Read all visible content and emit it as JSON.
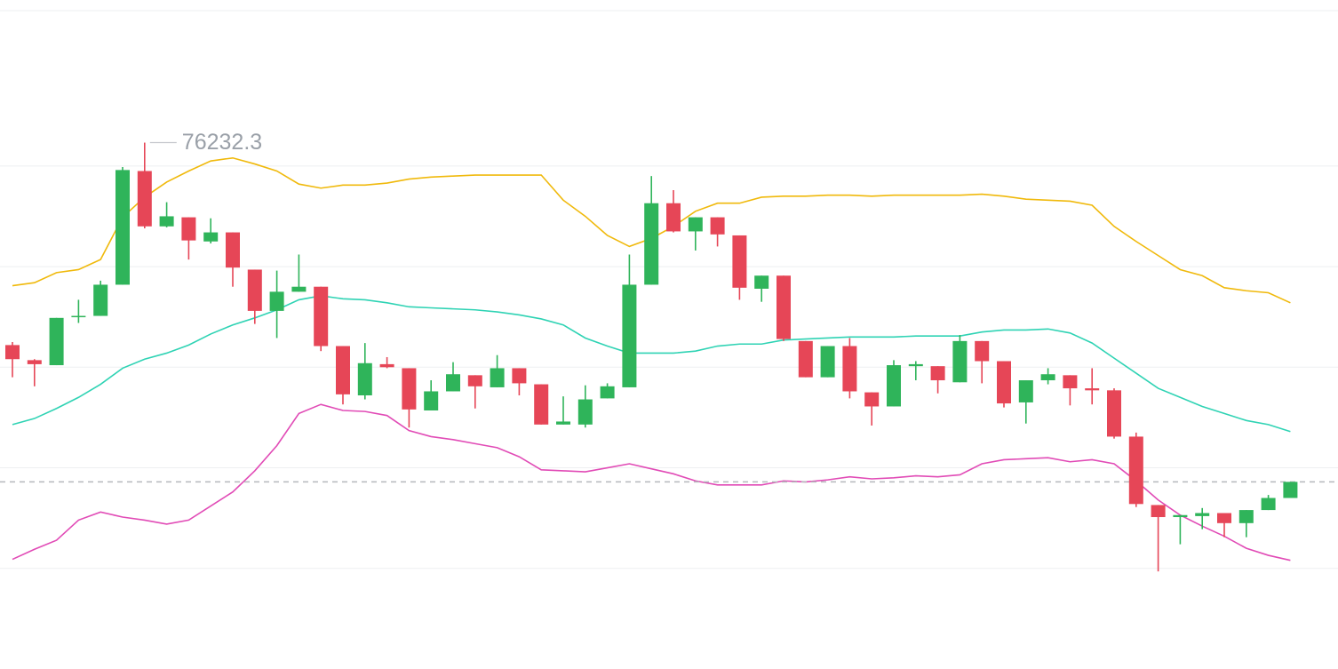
{
  "chart_data": {
    "type": "candlestick",
    "ylim": [
      71000,
      77650
    ],
    "yticks": [
      72000,
      73000,
      74000,
      75000,
      76000
    ],
    "grid": true,
    "up_color": "#2fb45a",
    "down_color": "#e64657",
    "open": [
      74220,
      74070,
      74020,
      74500,
      74510,
      74820,
      75950,
      75400,
      75490,
      75250,
      75340,
      74970,
      74560,
      74750,
      74800,
      74210,
      73720,
      74030,
      73990,
      73570,
      73760,
      73920,
      73800,
      73990,
      73830,
      73430,
      73430,
      73690,
      73800,
      74820,
      75630,
      75350,
      75490,
      75310,
      74780,
      74910,
      74260,
      73900,
      74210,
      73750,
      73610,
      74010,
      74010,
      73850,
      74260,
      74060,
      73650,
      73870,
      73920,
      73790,
      73770,
      73310,
      72630,
      72510,
      72520,
      72550,
      72450,
      72580,
      72700
    ],
    "high": [
      74250,
      74080,
      74490,
      74670,
      74860,
      75990,
      76232.3,
      75640,
      75490,
      75480,
      75340,
      74970,
      74960,
      75120,
      74800,
      74210,
      74240,
      74100,
      73990,
      73870,
      74050,
      73920,
      74120,
      73990,
      73830,
      73710,
      73820,
      73840,
      75120,
      75900,
      75760,
      75490,
      75490,
      75310,
      74910,
      74910,
      74260,
      74210,
      74290,
      73750,
      74070,
      74060,
      74010,
      74320,
      74260,
      74060,
      73870,
      73990,
      73920,
      73990,
      73790,
      73350,
      72630,
      72530,
      72600,
      72550,
      72580,
      72730,
      72860
    ],
    "low": [
      73900,
      73810,
      74020,
      74440,
      74510,
      74820,
      75380,
      75390,
      75070,
      75230,
      74800,
      74430,
      74290,
      74750,
      74160,
      73630,
      73680,
      73990,
      73400,
      73570,
      73760,
      73590,
      73800,
      73720,
      73430,
      73430,
      73400,
      73690,
      73800,
      74820,
      75340,
      75160,
      75200,
      74670,
      74650,
      74260,
      73900,
      73900,
      73690,
      73420,
      73610,
      73870,
      73740,
      73850,
      73840,
      73600,
      73440,
      73830,
      73620,
      73630,
      73290,
      72610,
      71970,
      72240,
      72390,
      72310,
      72310,
      72580,
      72700
    ],
    "close": [
      74080,
      74030,
      74490,
      74510,
      74820,
      75960,
      75400,
      75500,
      75260,
      75340,
      74990,
      74560,
      74750,
      74800,
      74210,
      73730,
      74040,
      74000,
      73580,
      73760,
      73930,
      73810,
      73990,
      73840,
      73430,
      73460,
      73680,
      73810,
      74820,
      75630,
      75350,
      75490,
      75320,
      74790,
      74910,
      74280,
      73900,
      74210,
      73760,
      73610,
      74020,
      74030,
      73870,
      74260,
      74060,
      73640,
      73870,
      73930,
      73790,
      73770,
      73310,
      72640,
      72510,
      72530,
      72550,
      72450,
      72580,
      72700,
      72860
    ],
    "series": [
      {
        "color": "#f0b90b",
        "values": [
          74810,
          74840,
          74940,
          74970,
          75070,
          75490,
          75690,
          75840,
          75950,
          76050,
          76080,
          76020,
          75950,
          75820,
          75780,
          75810,
          75810,
          75830,
          75870,
          75890,
          75900,
          75910,
          75910,
          75910,
          75910,
          75660,
          75500,
          75310,
          75200,
          75280,
          75400,
          75550,
          75630,
          75630,
          75690,
          75700,
          75700,
          75710,
          75710,
          75700,
          75710,
          75710,
          75710,
          75710,
          75720,
          75700,
          75670,
          75660,
          75650,
          75610,
          75400,
          75250,
          75110,
          74970,
          74910,
          74790,
          74760,
          74740,
          74640
        ]
      },
      {
        "color": "#2fd3b4",
        "values": [
          73430,
          73490,
          73590,
          73700,
          73830,
          73990,
          74080,
          74140,
          74220,
          74330,
          74420,
          74490,
          74570,
          74670,
          74710,
          74680,
          74670,
          74640,
          74600,
          74590,
          74580,
          74570,
          74550,
          74520,
          74480,
          74420,
          74290,
          74210,
          74140,
          74140,
          74140,
          74160,
          74210,
          74230,
          74230,
          74270,
          74280,
          74290,
          74300,
          74300,
          74300,
          74310,
          74310,
          74310,
          74350,
          74370,
          74370,
          74380,
          74340,
          74240,
          74090,
          73940,
          73790,
          73700,
          73610,
          73540,
          73470,
          73430,
          73360
        ]
      },
      {
        "color": "#e14bb6",
        "values": [
          72090,
          72190,
          72280,
          72480,
          72560,
          72510,
          72480,
          72440,
          72480,
          72620,
          72760,
          72970,
          73220,
          73540,
          73630,
          73570,
          73560,
          73520,
          73370,
          73310,
          73280,
          73240,
          73200,
          73110,
          72980,
          72970,
          72960,
          73000,
          73040,
          72990,
          72940,
          72870,
          72830,
          72830,
          72830,
          72870,
          72860,
          72880,
          72910,
          72890,
          72900,
          72920,
          72910,
          72930,
          73040,
          73080,
          73090,
          73100,
          73060,
          73080,
          73040,
          72870,
          72680,
          72530,
          72420,
          72320,
          72200,
          72130,
          72080
        ]
      }
    ]
  }
}
